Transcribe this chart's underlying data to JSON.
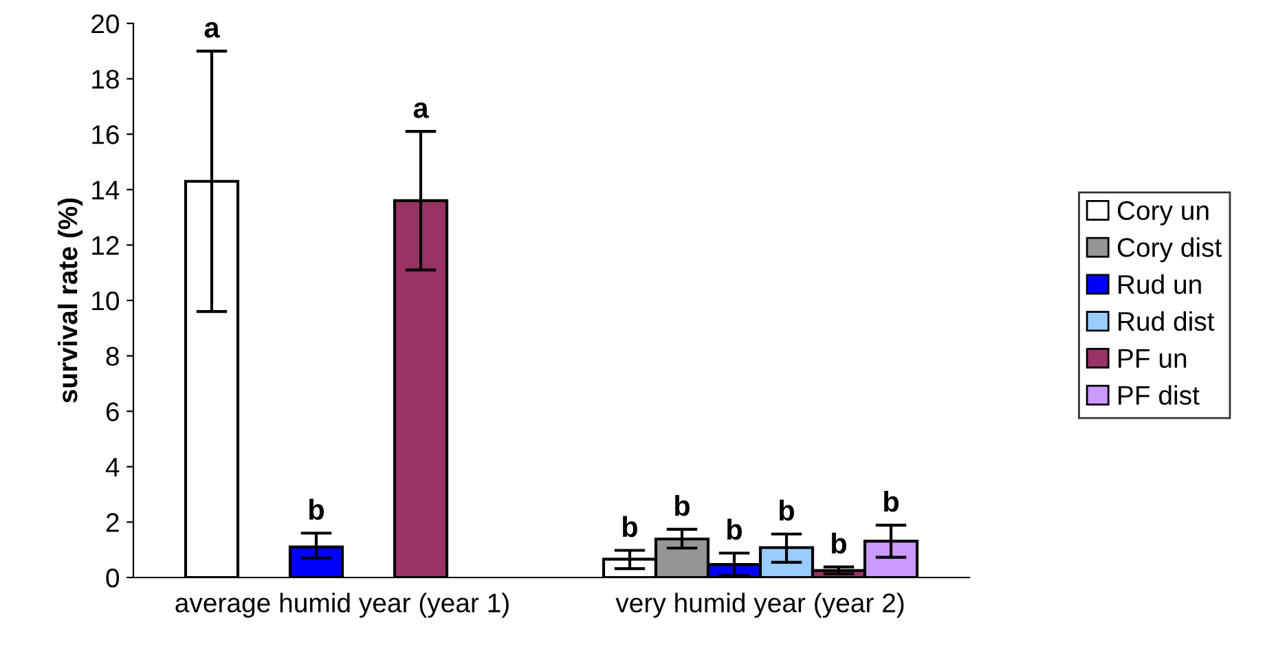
{
  "chart_data": {
    "type": "bar",
    "ylabel": "survival rate (%)",
    "categories": [
      "average humid year (year 1)",
      "very humid year (year 2)"
    ],
    "series": [
      {
        "name": "Cory un",
        "color": "#ffffff",
        "values": [
          14.3,
          0.66
        ],
        "errors": [
          [
            9.6,
            19.0
          ],
          [
            0.32,
            0.98
          ]
        ]
      },
      {
        "name": "Cory dist",
        "color": "#969696",
        "values": [
          null,
          1.39
        ],
        "errors": [
          null,
          [
            1.06,
            1.74
          ]
        ]
      },
      {
        "name": "Rud un",
        "color": "#0000ff",
        "values": [
          1.1,
          0.47
        ],
        "errors": [
          [
            0.7,
            1.6
          ],
          [
            0.08,
            0.88
          ]
        ]
      },
      {
        "name": "Rud dist",
        "color": "#99ccff",
        "values": [
          null,
          1.08
        ],
        "errors": [
          null,
          [
            0.55,
            1.57
          ]
        ]
      },
      {
        "name": "PF un",
        "color": "#993366",
        "values": [
          13.6,
          0.25
        ],
        "errors": [
          [
            11.1,
            16.1
          ],
          [
            0.13,
            0.38
          ]
        ]
      },
      {
        "name": "PF dist",
        "color": "#cc99ff",
        "values": [
          null,
          1.31
        ],
        "errors": [
          null,
          [
            0.73,
            1.89
          ]
        ]
      }
    ],
    "annotations": [
      "a",
      "b",
      "b",
      "b",
      "b",
      "b",
      "a",
      "b",
      "b"
    ],
    "ylim": [
      0,
      20
    ],
    "yticks": [
      0,
      2,
      4,
      6,
      8,
      10,
      12,
      14,
      16,
      18,
      20
    ],
    "grid": false,
    "legend": "right"
  }
}
